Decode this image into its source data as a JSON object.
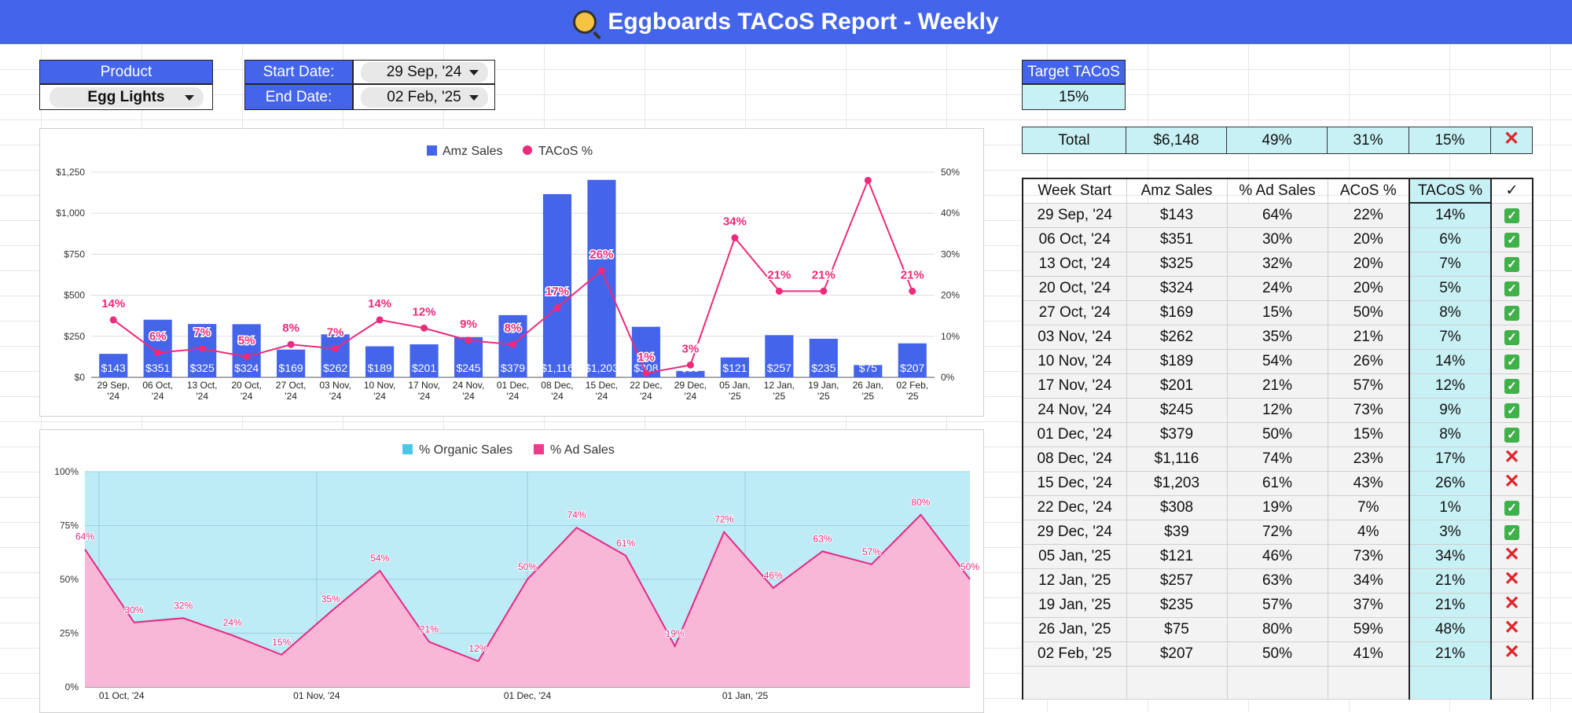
{
  "title": "Eggboards TACoS Report - Weekly",
  "logo_icon": "egg-pan-icon",
  "filters": {
    "product_label": "Product",
    "product_value": "Egg Lights",
    "start_label": "Start Date:",
    "start_value": "29 Sep, '24",
    "end_label": "End Date:",
    "end_value": "02 Feb, '25"
  },
  "target": {
    "label": "Target TACoS",
    "value": "15%"
  },
  "total": {
    "label": "Total",
    "amz_sales": "$6,148",
    "ad_sales_pct": "49%",
    "acos": "31%",
    "tacos": "15%",
    "status": "x"
  },
  "table": {
    "headers": [
      "Week Start",
      "Amz Sales",
      "% Ad Sales",
      "ACoS %",
      "TACoS %",
      "✓"
    ],
    "rows": [
      [
        "29 Sep, '24",
        "$143",
        "64%",
        "22%",
        "14%",
        "ok"
      ],
      [
        "06 Oct, '24",
        "$351",
        "30%",
        "20%",
        "6%",
        "ok"
      ],
      [
        "13 Oct, '24",
        "$325",
        "32%",
        "20%",
        "7%",
        "ok"
      ],
      [
        "20 Oct, '24",
        "$324",
        "24%",
        "20%",
        "5%",
        "ok"
      ],
      [
        "27 Oct, '24",
        "$169",
        "15%",
        "50%",
        "8%",
        "ok"
      ],
      [
        "03 Nov, '24",
        "$262",
        "35%",
        "21%",
        "7%",
        "ok"
      ],
      [
        "10 Nov, '24",
        "$189",
        "54%",
        "26%",
        "14%",
        "ok"
      ],
      [
        "17 Nov, '24",
        "$201",
        "21%",
        "57%",
        "12%",
        "ok"
      ],
      [
        "24 Nov, '24",
        "$245",
        "12%",
        "73%",
        "9%",
        "ok"
      ],
      [
        "01 Dec, '24",
        "$379",
        "50%",
        "15%",
        "8%",
        "ok"
      ],
      [
        "08 Dec, '24",
        "$1,116",
        "74%",
        "23%",
        "17%",
        "x"
      ],
      [
        "15 Dec, '24",
        "$1,203",
        "61%",
        "43%",
        "26%",
        "x"
      ],
      [
        "22 Dec, '24",
        "$308",
        "19%",
        "7%",
        "1%",
        "ok"
      ],
      [
        "29 Dec, '24",
        "$39",
        "72%",
        "4%",
        "3%",
        "ok"
      ],
      [
        "05 Jan, '25",
        "$121",
        "46%",
        "73%",
        "34%",
        "x"
      ],
      [
        "12 Jan, '25",
        "$257",
        "63%",
        "34%",
        "21%",
        "x"
      ],
      [
        "19 Jan, '25",
        "$235",
        "57%",
        "37%",
        "21%",
        "x"
      ],
      [
        "26 Jan, '25",
        "$75",
        "80%",
        "59%",
        "48%",
        "x"
      ],
      [
        "02 Feb, '25",
        "$207",
        "50%",
        "41%",
        "21%",
        "x"
      ]
    ]
  },
  "colors": {
    "banner": "#4465e9",
    "bar": "#4465e9",
    "tacos_line": "#ee2a7b",
    "organic": "#bdebf6",
    "ad": "#fbb4d4",
    "ad_line": "#e42a84",
    "highlight": "#c8f1f5",
    "ok": "#3fb04a",
    "bad": "#e0242b"
  },
  "chart_data": [
    {
      "type": "bar",
      "legend": [
        "Amz Sales",
        "TACoS %"
      ],
      "legend_position": "top",
      "categories": [
        "29 Sep, '24",
        "06 Oct, '24",
        "13 Oct, '24",
        "20 Oct, '24",
        "27 Oct, '24",
        "03 Nov, '24",
        "10 Nov, '24",
        "17 Nov, '24",
        "24 Nov, '24",
        "01 Dec, '24",
        "08 Dec, '24",
        "15 Dec, '24",
        "22 Dec, '24",
        "29 Dec, '24",
        "05 Jan, '25",
        "12 Jan, '25",
        "19 Jan, '25",
        "26 Jan, '25",
        "02 Feb, '25"
      ],
      "series": [
        {
          "name": "Amz Sales",
          "values": [
            143,
            351,
            325,
            324,
            169,
            262,
            189,
            201,
            245,
            379,
            1116,
            1203,
            308,
            39,
            121,
            257,
            235,
            75,
            207
          ],
          "labels": [
            "$143",
            "$351",
            "$325",
            "$324",
            "$169",
            "$262",
            "$189",
            "$201",
            "$245",
            "$379",
            "$1,116",
            "$1,203",
            "$308",
            "$39",
            "$121",
            "$257",
            "$235",
            "$75",
            "$207"
          ]
        },
        {
          "name": "TACoS %",
          "values": [
            14,
            6,
            7,
            5,
            8,
            7,
            14,
            12,
            9,
            8,
            17,
            26,
            1,
            3,
            34,
            21,
            21,
            48,
            21
          ],
          "labels": [
            "14%",
            "6%",
            "7%",
            "5%",
            "8%",
            "7%",
            "14%",
            "12%",
            "9%",
            "8%",
            "17%",
            "26%",
            "1%",
            "3%",
            "34%",
            "21%",
            "21%",
            "",
            "21%"
          ]
        }
      ],
      "y_left_ticks": [
        "$0",
        "$250",
        "$500",
        "$750",
        "$1,000",
        "$1,250"
      ],
      "y_left_range": [
        0,
        1250
      ],
      "y_right_ticks": [
        "0%",
        "10%",
        "20%",
        "30%",
        "40%",
        "50%"
      ],
      "y_right_range": [
        0,
        50
      ],
      "grid": true
    },
    {
      "type": "area",
      "legend": [
        "% Organic Sales",
        "% Ad Sales"
      ],
      "legend_position": "top",
      "x_ticks": [
        "01 Oct, '24",
        "01 Nov, '24",
        "01 Dec, '24",
        "01 Jan, '25"
      ],
      "y_ticks": [
        "0%",
        "25%",
        "50%",
        "75%",
        "100%"
      ],
      "y_range": [
        0,
        100
      ],
      "x": [
        "2024-09-29",
        "2024-10-06",
        "2024-10-13",
        "2024-10-20",
        "2024-10-27",
        "2024-11-03",
        "2024-11-10",
        "2024-11-17",
        "2024-11-24",
        "2024-12-01",
        "2024-12-08",
        "2024-12-15",
        "2024-12-22",
        "2024-12-29",
        "2025-01-05",
        "2025-01-12",
        "2025-01-19",
        "2025-01-26",
        "2025-02-02"
      ],
      "series": [
        {
          "name": "% Ad Sales",
          "values": [
            64,
            30,
            32,
            24,
            15,
            35,
            54,
            21,
            12,
            50,
            74,
            61,
            19,
            72,
            46,
            63,
            57,
            80,
            50
          ],
          "labels": [
            "64%",
            "30%",
            "32%",
            "24%",
            "15%",
            "35%",
            "54%",
            "21%",
            "12%",
            "50%",
            "74%",
            "61%",
            "19%",
            "72%",
            "46%",
            "63%",
            "57%",
            "80%",
            "50%"
          ]
        },
        {
          "name": "% Organic Sales",
          "values": [
            36,
            70,
            68,
            76,
            85,
            65,
            46,
            79,
            88,
            50,
            26,
            39,
            81,
            28,
            54,
            37,
            43,
            20,
            50
          ]
        }
      ],
      "grid": true
    }
  ]
}
